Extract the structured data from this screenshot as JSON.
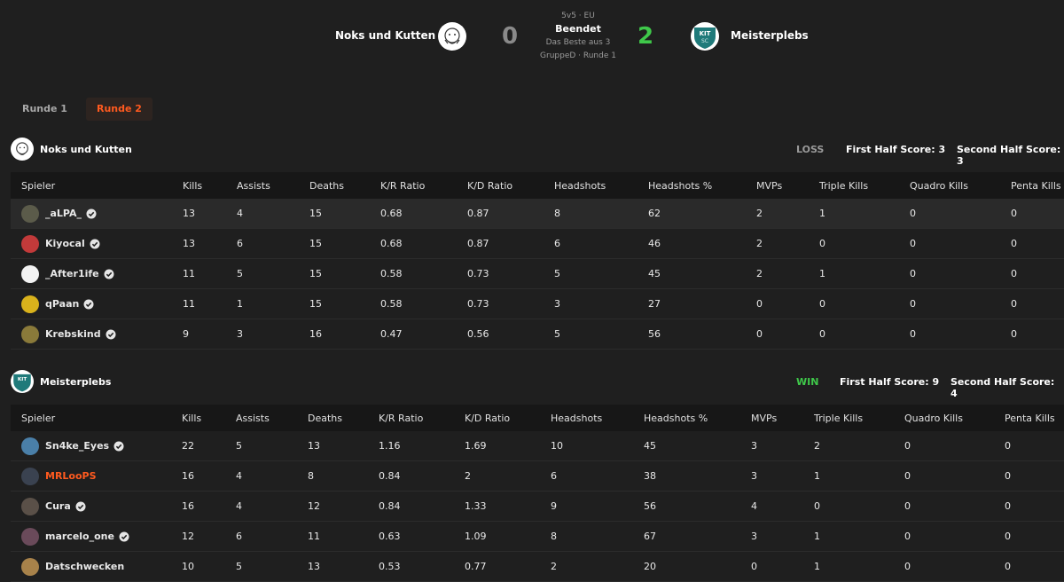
{
  "match": {
    "mode": "5v5 · EU",
    "status": "Beendet",
    "best_of": "Das Beste aus 3",
    "group_round": "GruppeD · Runde 1",
    "team_left": {
      "name": "Noks und Kutten",
      "score": "0"
    },
    "team_right": {
      "name": "Meisterplebs",
      "score": "2"
    }
  },
  "rounds": [
    {
      "label": "Runde 1",
      "active": false
    },
    {
      "label": "Runde 2",
      "active": true
    }
  ],
  "columns": [
    "Spieler",
    "Kills",
    "Assists",
    "Deaths",
    "K/R Ratio",
    "K/D Ratio",
    "Headshots",
    "Headshots %",
    "MVPs",
    "Triple Kills",
    "Quadro Kills",
    "Penta Kills"
  ],
  "teams": [
    {
      "name": "Noks und Kutten",
      "result": "LOSS",
      "result_color": "#9a9a9a",
      "first_half": "First Half Score: 3",
      "second_half": "Second Half Score: 3",
      "players": [
        {
          "name": "_aLPA_",
          "verified": true,
          "cells": [
            "13",
            "4",
            "15",
            "0.68",
            "0.87",
            "8",
            "62",
            "2",
            "1",
            "0",
            "0"
          ],
          "avatar_color": "#5b5b4a"
        },
        {
          "name": "Kiyocal",
          "verified": true,
          "cells": [
            "13",
            "6",
            "15",
            "0.68",
            "0.87",
            "6",
            "46",
            "2",
            "0",
            "0",
            "0"
          ],
          "avatar_color": "#c23a3a"
        },
        {
          "name": "_After1ife",
          "verified": true,
          "cells": [
            "11",
            "5",
            "15",
            "0.58",
            "0.73",
            "5",
            "45",
            "2",
            "1",
            "0",
            "0"
          ],
          "avatar_color": "#f2f2f2"
        },
        {
          "name": "qPaan",
          "verified": true,
          "cells": [
            "11",
            "1",
            "15",
            "0.58",
            "0.73",
            "3",
            "27",
            "0",
            "0",
            "0",
            "0"
          ],
          "avatar_color": "#d9b21c"
        },
        {
          "name": "Krebskind",
          "verified": true,
          "cells": [
            "9",
            "3",
            "16",
            "0.47",
            "0.56",
            "5",
            "56",
            "0",
            "0",
            "0",
            "0"
          ],
          "avatar_color": "#8a7a3a"
        }
      ]
    },
    {
      "name": "Meisterplebs",
      "result": "WIN",
      "result_color": "#3fc84a",
      "first_half": "First Half Score: 9",
      "second_half": "Second Half Score: 4",
      "players": [
        {
          "name": "Sn4ke_Eyes",
          "verified": true,
          "cells": [
            "22",
            "5",
            "13",
            "1.16",
            "1.69",
            "10",
            "45",
            "3",
            "2",
            "0",
            "0"
          ],
          "avatar_color": "#4a7fa8"
        },
        {
          "name": "MRLooPS",
          "verified": false,
          "orange": true,
          "cells": [
            "16",
            "4",
            "8",
            "0.84",
            "2",
            "6",
            "38",
            "3",
            "1",
            "0",
            "0"
          ],
          "avatar_color": "#3a4250"
        },
        {
          "name": "Cura",
          "verified": true,
          "cells": [
            "16",
            "4",
            "12",
            "0.84",
            "1.33",
            "9",
            "56",
            "4",
            "0",
            "0",
            "0"
          ],
          "avatar_color": "#5a5048"
        },
        {
          "name": "marcelo_one",
          "verified": true,
          "cells": [
            "12",
            "6",
            "11",
            "0.63",
            "1.09",
            "8",
            "67",
            "3",
            "1",
            "0",
            "0"
          ],
          "avatar_color": "#6a4a5a"
        },
        {
          "name": "Datschwecken",
          "verified": false,
          "cells": [
            "10",
            "5",
            "13",
            "0.53",
            "0.77",
            "2",
            "20",
            "0",
            "1",
            "0",
            "0"
          ],
          "avatar_color": "#a8824a"
        }
      ]
    }
  ]
}
